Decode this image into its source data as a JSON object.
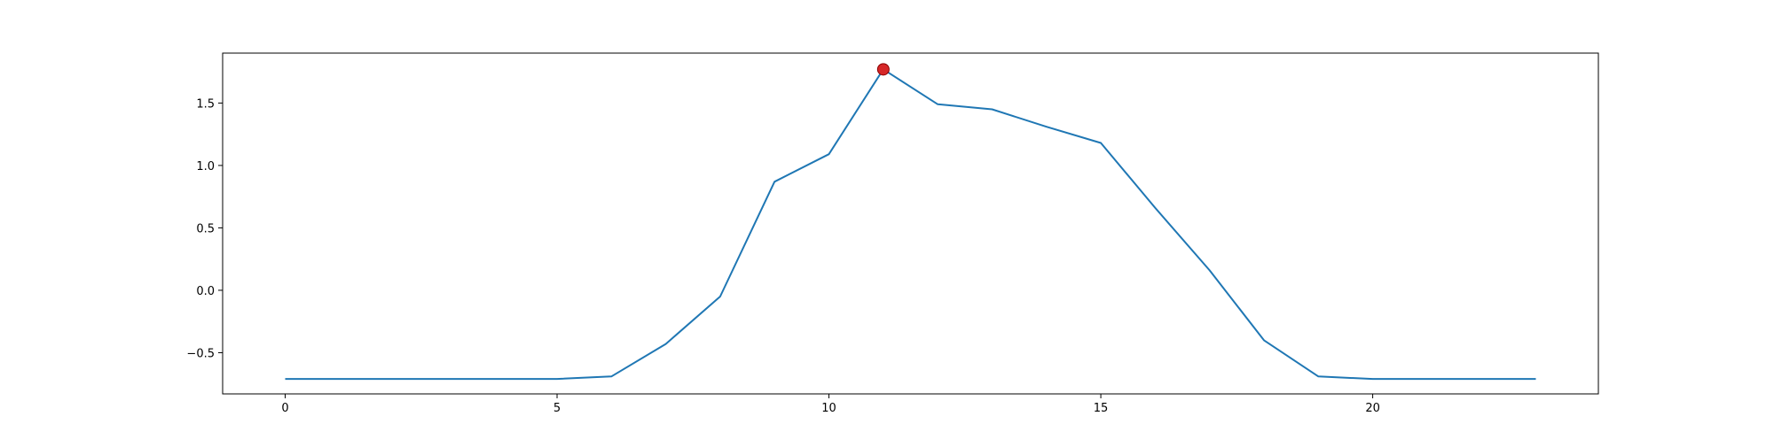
{
  "chart_data": {
    "type": "line",
    "title": "",
    "xlabel": "",
    "ylabel": "",
    "xlim": [
      -1.15,
      24.15
    ],
    "ylim": [
      -0.83,
      1.9
    ],
    "xticks": [
      0,
      5,
      10,
      15,
      20
    ],
    "yticks": [
      -0.5,
      0.0,
      0.5,
      1.0,
      1.5
    ],
    "xtick_labels": [
      "0",
      "5",
      "10",
      "15",
      "20"
    ],
    "ytick_labels": [
      "−0.5",
      "0.0",
      "0.5",
      "1.0",
      "1.5"
    ],
    "grid": false,
    "legend": "none",
    "series": [
      {
        "color": "#1f77b4",
        "x": [
          0,
          1,
          2,
          3,
          4,
          5,
          6,
          7,
          8,
          9,
          10,
          11,
          12,
          13,
          14,
          15,
          16,
          17,
          18,
          19,
          20,
          21,
          22,
          23
        ],
        "y": [
          -0.71,
          -0.71,
          -0.71,
          -0.71,
          -0.71,
          -0.71,
          -0.69,
          -0.43,
          -0.05,
          0.87,
          1.09,
          1.77,
          1.49,
          1.45,
          1.31,
          1.18,
          0.66,
          0.16,
          -0.4,
          -0.69,
          -0.71,
          -0.71,
          -0.71,
          -0.71
        ]
      }
    ],
    "markers": [
      {
        "x": 11,
        "y": 1.77,
        "color": "#d62728",
        "edge_color": "#8b0000"
      }
    ]
  }
}
